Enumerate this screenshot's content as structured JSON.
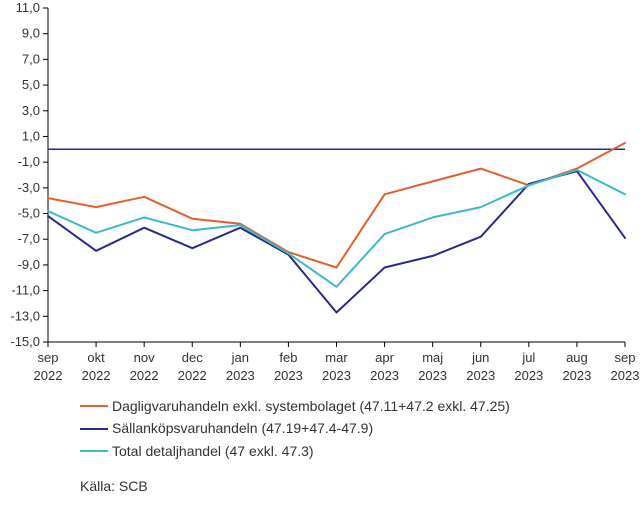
{
  "chart": {
    "type": "line",
    "background_color": "#ffffff",
    "grid_color": "#d0d0d0",
    "axis_color": "#000000",
    "text_color": "#333333",
    "axis_fontsize": 13,
    "legend_fontsize": 14,
    "line_width": 2,
    "ylim": [
      -15,
      11
    ],
    "ytick_step": 2,
    "yticks": [
      "11,0",
      "9,0",
      "7,0",
      "5,0",
      "3,0",
      "1,0",
      "-1,0",
      "-3,0",
      "-5,0",
      "-7,0",
      "-9,0",
      "-11,0",
      "-13,0",
      "-15,0"
    ],
    "ytick_values": [
      11,
      9,
      7,
      5,
      3,
      1,
      -1,
      -3,
      -5,
      -7,
      -9,
      -11,
      -13,
      -15
    ],
    "categories": [
      "sep",
      "okt",
      "nov",
      "dec",
      "jan",
      "feb",
      "mar",
      "apr",
      "maj",
      "jun",
      "jul",
      "aug",
      "sep"
    ],
    "categories_years": [
      "2022",
      "2022",
      "2022",
      "2022",
      "2023",
      "2023",
      "2023",
      "2023",
      "2023",
      "2023",
      "2023",
      "2023",
      "2023"
    ],
    "zero_line_color": "#2a2a8a",
    "series": [
      {
        "name": "Dagligvaruhandeln exkl. systembolaget (47.11+47.2 exkl. 47.25)",
        "color": "#e06030",
        "values": [
          -3.8,
          -4.5,
          -3.7,
          -5.4,
          -5.8,
          -8.0,
          -9.2,
          -3.5,
          -2.5,
          -1.5,
          -2.8,
          -1.5,
          0.5
        ]
      },
      {
        "name": "Sällanköpsvaruhandeln (47.19+47.4-47.9)",
        "color": "#2a2a8a",
        "values": [
          -5.2,
          -7.9,
          -6.1,
          -7.7,
          -6.1,
          -8.2,
          -12.7,
          -9.2,
          -8.3,
          -6.8,
          -2.7,
          -1.7,
          -6.9
        ]
      },
      {
        "name": "Total detaljhandel (47 exkl. 47.3)",
        "color": "#3fb8c9",
        "values": [
          -4.8,
          -6.5,
          -5.3,
          -6.3,
          -5.9,
          -8.1,
          -10.7,
          -6.6,
          -5.3,
          -4.5,
          -2.8,
          -1.6,
          -3.5
        ]
      }
    ]
  },
  "legend_items": [
    {
      "label": "Dagligvaruhandeln exkl. systembolaget (47.11+47.2 exkl. 47.25)",
      "color": "#e06030"
    },
    {
      "label": "Sällanköpsvaruhandeln (47.19+47.4-47.9)",
      "color": "#2a2a8a"
    },
    {
      "label": "Total detaljhandel (47 exkl. 47.3)",
      "color": "#3fb8c9"
    }
  ],
  "source_label": "Källa: SCB"
}
